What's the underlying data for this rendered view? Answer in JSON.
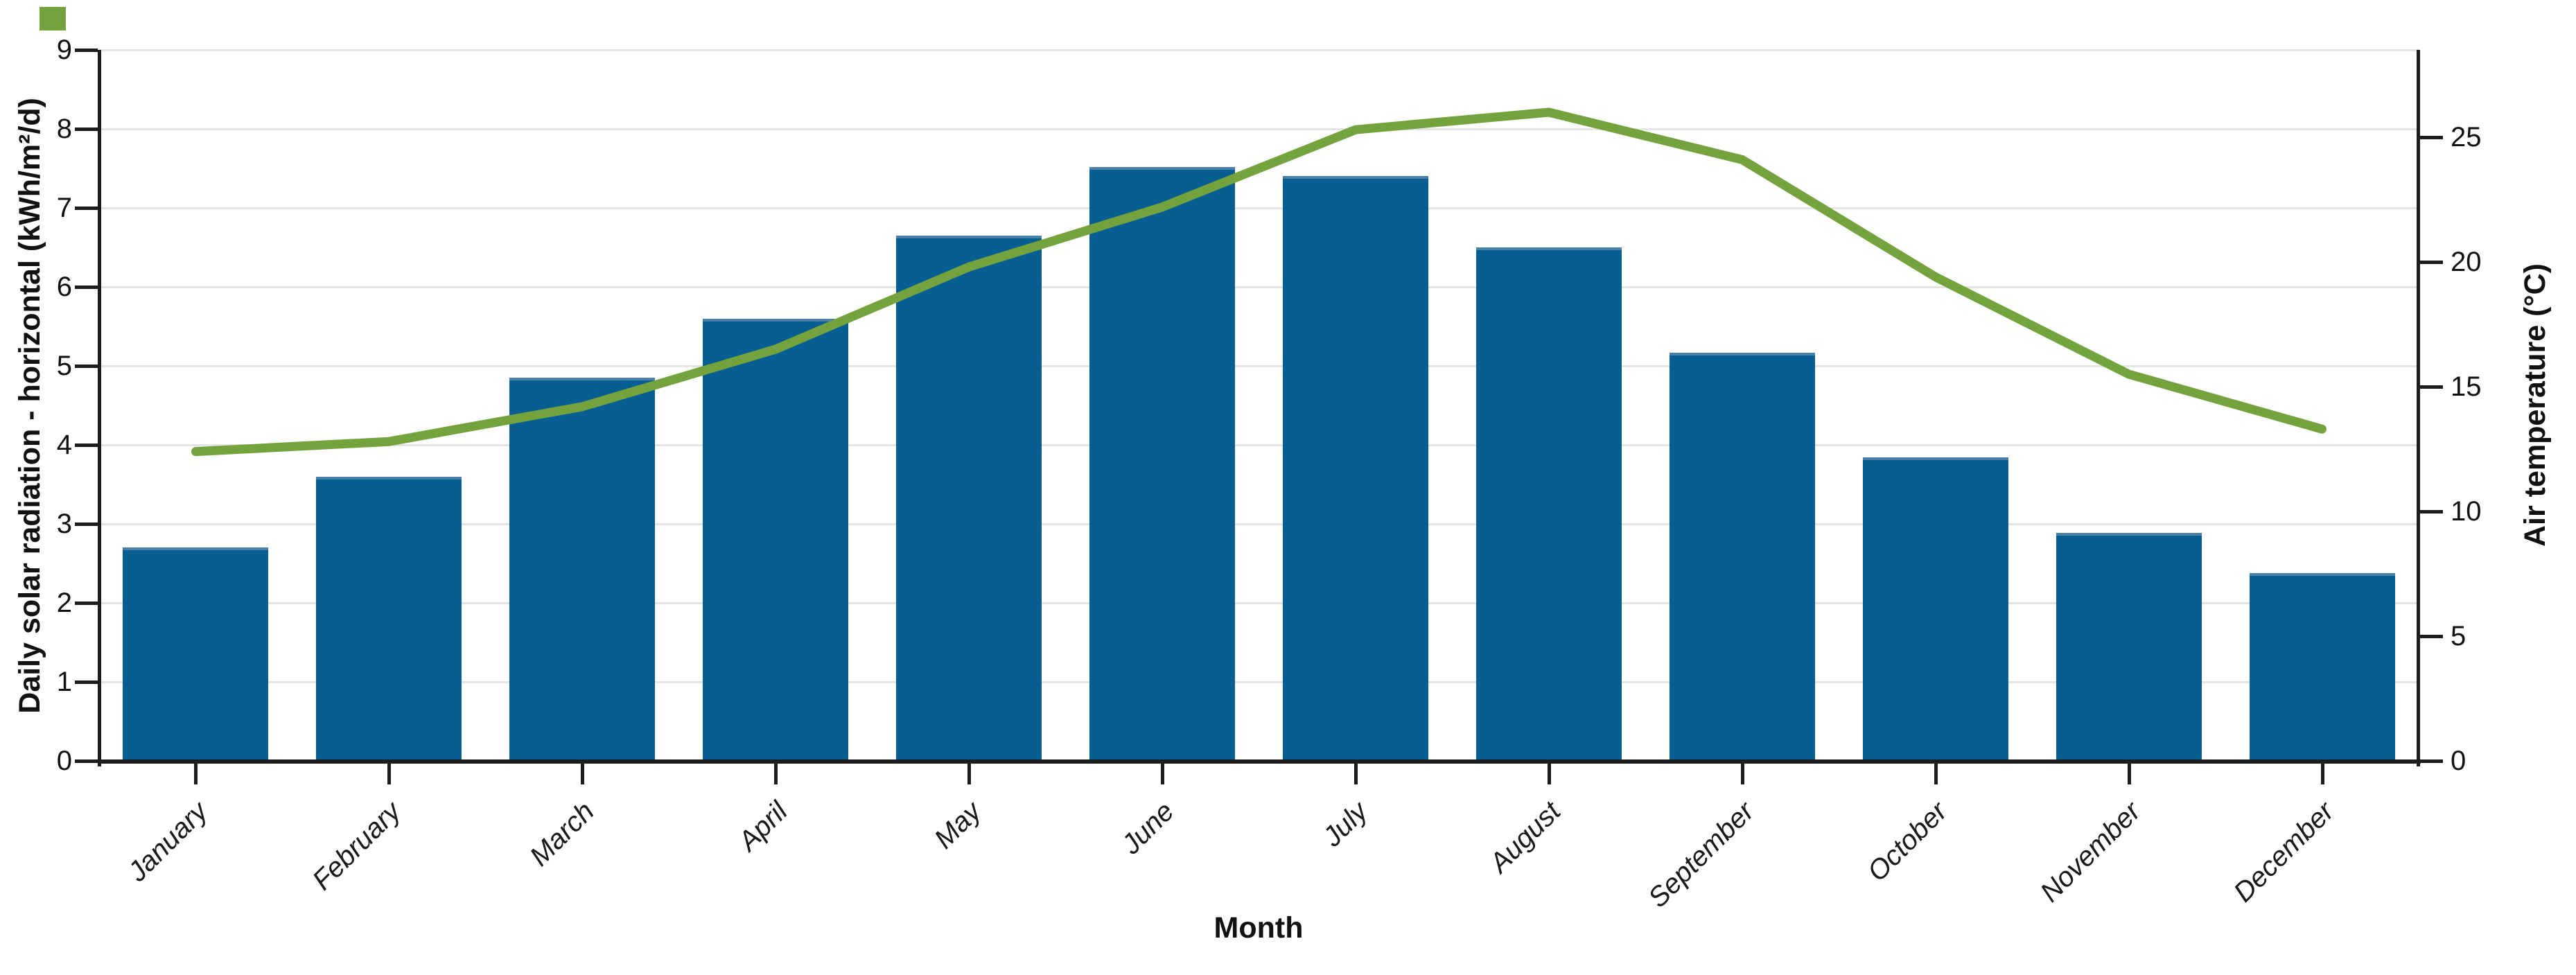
{
  "page": {
    "background": "#ffffff"
  },
  "chart_data": {
    "type": "bar",
    "subtype": "bar-and-line-combo",
    "title": "",
    "categories": [
      "January",
      "February",
      "March",
      "April",
      "May",
      "June",
      "July",
      "August",
      "September",
      "October",
      "November",
      "December"
    ],
    "series": [
      {
        "name": "Daily solar radiation - horizontal",
        "type": "bar",
        "axis": "left",
        "unit": "kWh/m²/d",
        "color": "#075e92",
        "bar_top_edge_color": "#4b80a9",
        "values": [
          2.7,
          3.6,
          4.85,
          5.6,
          6.65,
          7.52,
          7.4,
          6.5,
          5.17,
          3.84,
          2.89,
          2.38
        ]
      },
      {
        "name": "Air temperature",
        "type": "line",
        "axis": "right",
        "unit": "°C",
        "color": "#74a23c",
        "values": [
          12.4,
          12.8,
          14.2,
          16.5,
          19.8,
          22.2,
          25.3,
          26.0,
          24.1,
          19.4,
          15.5,
          13.3
        ]
      }
    ],
    "xlabel": "Month",
    "left_axis": {
      "label": "Daily solar radiation - horizontal (kWh/m²/d)",
      "min": 0,
      "max": 9,
      "ticks": [
        0,
        1,
        2,
        3,
        4,
        5,
        6,
        7,
        8,
        9
      ]
    },
    "right_axis": {
      "label": "Air temperature (°C)",
      "min": 0,
      "max": 28.5,
      "ticks": [
        0,
        5,
        10,
        15,
        20,
        25
      ]
    },
    "grid": {
      "horizontal": true,
      "vertical": false,
      "color": "#e4e4e4"
    },
    "legend": "none",
    "axis_color": "#1c1c1c",
    "text_color": "#111111",
    "corner_marker_color": "#74a23c"
  }
}
